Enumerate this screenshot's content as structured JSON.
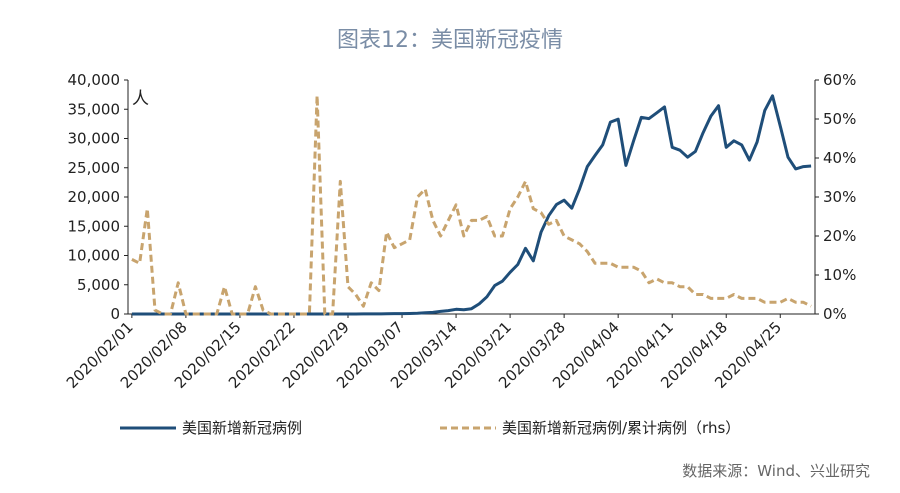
{
  "title": "图表12：美国新冠疫情",
  "source": "数据来源：Wind、兴业研究",
  "chart_data": {
    "type": "line",
    "title": "图表12：美国新冠疫情",
    "unit_label": "人",
    "x": [
      "2020/02/01",
      "2020/02/02",
      "2020/02/03",
      "2020/02/04",
      "2020/02/05",
      "2020/02/06",
      "2020/02/07",
      "2020/02/08",
      "2020/02/09",
      "2020/02/10",
      "2020/02/11",
      "2020/02/12",
      "2020/02/13",
      "2020/02/14",
      "2020/02/15",
      "2020/02/16",
      "2020/02/17",
      "2020/02/18",
      "2020/02/19",
      "2020/02/20",
      "2020/02/21",
      "2020/02/22",
      "2020/02/23",
      "2020/02/24",
      "2020/02/25",
      "2020/02/26",
      "2020/02/27",
      "2020/02/28",
      "2020/02/29",
      "2020/03/01",
      "2020/03/02",
      "2020/03/03",
      "2020/03/04",
      "2020/03/05",
      "2020/03/06",
      "2020/03/07",
      "2020/03/08",
      "2020/03/09",
      "2020/03/10",
      "2020/03/11",
      "2020/03/12",
      "2020/03/13",
      "2020/03/14",
      "2020/03/15",
      "2020/03/16",
      "2020/03/17",
      "2020/03/18",
      "2020/03/19",
      "2020/03/20",
      "2020/03/21",
      "2020/03/22",
      "2020/03/23",
      "2020/03/24",
      "2020/03/25",
      "2020/03/26",
      "2020/03/27",
      "2020/03/28",
      "2020/03/29",
      "2020/03/30",
      "2020/03/31",
      "2020/04/01",
      "2020/04/02",
      "2020/04/03",
      "2020/04/04",
      "2020/04/05",
      "2020/04/06",
      "2020/04/07",
      "2020/04/08",
      "2020/04/09",
      "2020/04/10",
      "2020/04/11",
      "2020/04/12",
      "2020/04/13",
      "2020/04/14",
      "2020/04/15",
      "2020/04/16",
      "2020/04/17",
      "2020/04/18",
      "2020/04/19",
      "2020/04/20",
      "2020/04/21",
      "2020/04/22",
      "2020/04/23",
      "2020/04/24",
      "2020/04/25",
      "2020/04/26",
      "2020/04/27",
      "2020/04/28",
      "2020/04/29"
    ],
    "x_tick_labels": [
      "2020/02/01",
      "2020/02/08",
      "2020/02/15",
      "2020/02/22",
      "2020/02/29",
      "2020/03/07",
      "2020/03/14",
      "2020/03/21",
      "2020/03/28",
      "2020/04/04",
      "2020/04/11",
      "2020/04/18",
      "2020/04/25"
    ],
    "y_left": {
      "ylim": [
        0,
        40000
      ],
      "ticks": [
        "0",
        "5,000",
        "10,000",
        "15,000",
        "20,000",
        "25,000",
        "30,000",
        "35,000",
        "40,000"
      ]
    },
    "y_right": {
      "ylim": [
        0,
        60
      ],
      "ticks": [
        "0%",
        "10%",
        "20%",
        "30%",
        "40%",
        "50%",
        "60%"
      ]
    },
    "series": [
      {
        "name": "美国新增新冠病例",
        "axis": "left",
        "color": "#1f4e79",
        "style": "solid",
        "values": [
          0,
          1,
          0,
          0,
          0,
          0,
          0,
          0,
          0,
          0,
          1,
          0,
          1,
          0,
          0,
          0,
          0,
          0,
          0,
          1,
          0,
          0,
          0,
          0,
          0,
          0,
          0,
          1,
          5,
          5,
          12,
          20,
          22,
          33,
          64,
          72,
          88,
          123,
          229,
          274,
          443,
          580,
          804,
          736,
          902,
          1719,
          2944,
          4855,
          5601,
          7123,
          8459,
          11236,
          9089,
          13963,
          16797,
          18695,
          19452,
          18088,
          21400,
          25200,
          27100,
          28900,
          32800,
          33300,
          25400,
          29600,
          33600,
          33400,
          34400,
          35400,
          28500,
          28000,
          26800,
          27800,
          31000,
          33800,
          35600,
          28500,
          29600,
          28900,
          26300,
          29400,
          34800,
          37300,
          32100,
          26800,
          24800,
          25200,
          25300
        ]
      },
      {
        "name": "美国新增新冠病例/累计病例（rhs）",
        "axis": "right",
        "color": "#c8a46e",
        "style": "dashed",
        "values": [
          14,
          13,
          27,
          1,
          0,
          0,
          8,
          0,
          0,
          0,
          0,
          0,
          7,
          0,
          0,
          0,
          7,
          1,
          0,
          0,
          0,
          0,
          0,
          0,
          56,
          0,
          0,
          34,
          7,
          5,
          2,
          8,
          6,
          21,
          17,
          18,
          19,
          30,
          32,
          24,
          20,
          24,
          28,
          20,
          24,
          24,
          25,
          20,
          20,
          27,
          30,
          34,
          27,
          26,
          23,
          24,
          20,
          19,
          18,
          16,
          13,
          13,
          13,
          12,
          12,
          12,
          11,
          8,
          9,
          8,
          8,
          7,
          7,
          5,
          5,
          4,
          4,
          4,
          5,
          4,
          4,
          4,
          3,
          3,
          3,
          4,
          3,
          3,
          2
        ]
      }
    ],
    "legend_placement": "bottom",
    "grid": false
  }
}
